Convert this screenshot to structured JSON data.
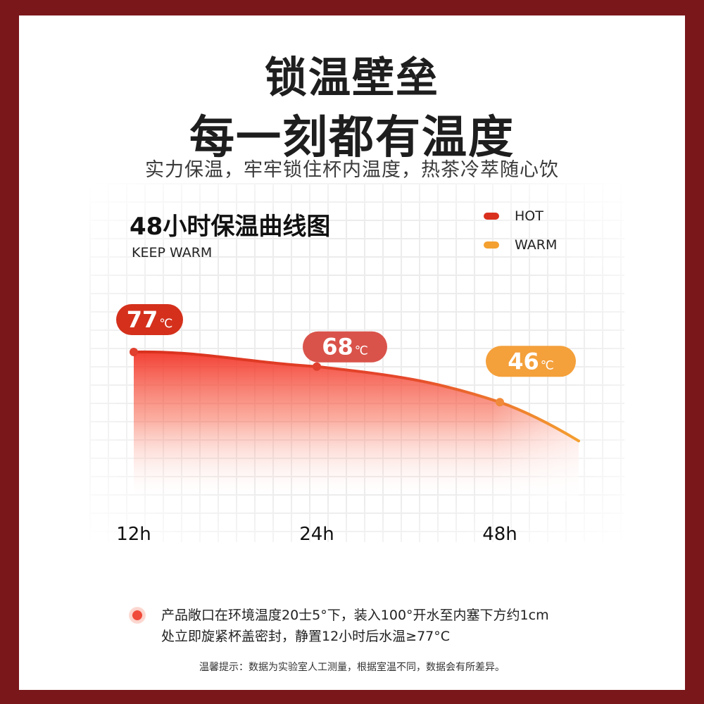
{
  "headline": {
    "line1": "锁温壁垒",
    "line2": "每一刻都有温度",
    "subtitle": "实力保温，牢牢锁住杯内温度，热茶冷萃随心饮"
  },
  "chart_data": {
    "type": "area",
    "title": "48小时保温曲线图",
    "subtitle": "KEEP WARM",
    "categories": [
      "12h",
      "24h",
      "48h"
    ],
    "values": [
      77,
      68,
      46
    ],
    "unit": "℃",
    "value_labels": [
      "77",
      "68",
      "46"
    ],
    "legend": [
      {
        "name": "HOT",
        "color": "#d9301e"
      },
      {
        "name": "WARM",
        "color": "#f4a030"
      }
    ],
    "label_colors": [
      "#d4301c",
      "#d9534a",
      "#f4a03b"
    ],
    "grid": true,
    "legend_position": "top-right"
  },
  "note": {
    "line1": "产品敞口在环境温度20士5°下，装入100°开水至内塞下方约1cm",
    "line2": "处立即旋紧杯盖密封，静置12小时后水温≥77°C"
  },
  "footnote": "温馨提示：数据为实验室人工测量，根据室温不同，数据会有所差异。"
}
